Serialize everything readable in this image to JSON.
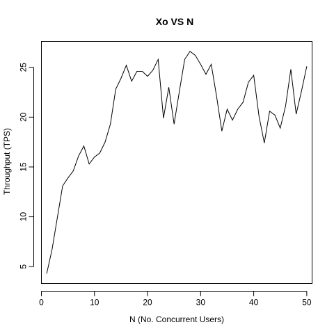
{
  "chart_data": {
    "type": "line",
    "title": "Xo VS N",
    "xlabel": "N (No. Concurrent Users)",
    "ylabel": "Throughput (TPS)",
    "xlim": [
      0,
      51
    ],
    "ylim": [
      3.3,
      27.6
    ],
    "xticks": [
      0,
      10,
      20,
      30,
      40,
      50
    ],
    "yticks": [
      5,
      10,
      15,
      20,
      25
    ],
    "grid": false,
    "series": [
      {
        "x": [
          1,
          2,
          3,
          4,
          5,
          6,
          7,
          8,
          9,
          10,
          11,
          12,
          13,
          14,
          15,
          16,
          17,
          18,
          19,
          20,
          21,
          22,
          23,
          24,
          25,
          26,
          27,
          28,
          29,
          30,
          31,
          32,
          33,
          34,
          35,
          36,
          37,
          38,
          39,
          40,
          41,
          42,
          43,
          44,
          45,
          46,
          47,
          48,
          49,
          50
        ],
        "values": [
          4.3,
          6.7,
          9.9,
          13.1,
          13.9,
          14.6,
          16.1,
          17.1,
          15.3,
          16.0,
          16.4,
          17.5,
          19.3,
          22.8,
          23.9,
          25.2,
          23.6,
          24.6,
          24.6,
          24.1,
          24.7,
          25.8,
          19.9,
          23.0,
          19.3,
          22.6,
          25.8,
          26.6,
          26.2,
          25.3,
          24.3,
          25.3,
          22.1,
          18.6,
          20.8,
          19.7,
          20.8,
          21.5,
          23.5,
          24.2,
          20.1,
          17.4,
          20.6,
          20.2,
          18.9,
          21.1,
          24.8,
          20.3,
          22.6,
          25.1
        ]
      }
    ]
  }
}
